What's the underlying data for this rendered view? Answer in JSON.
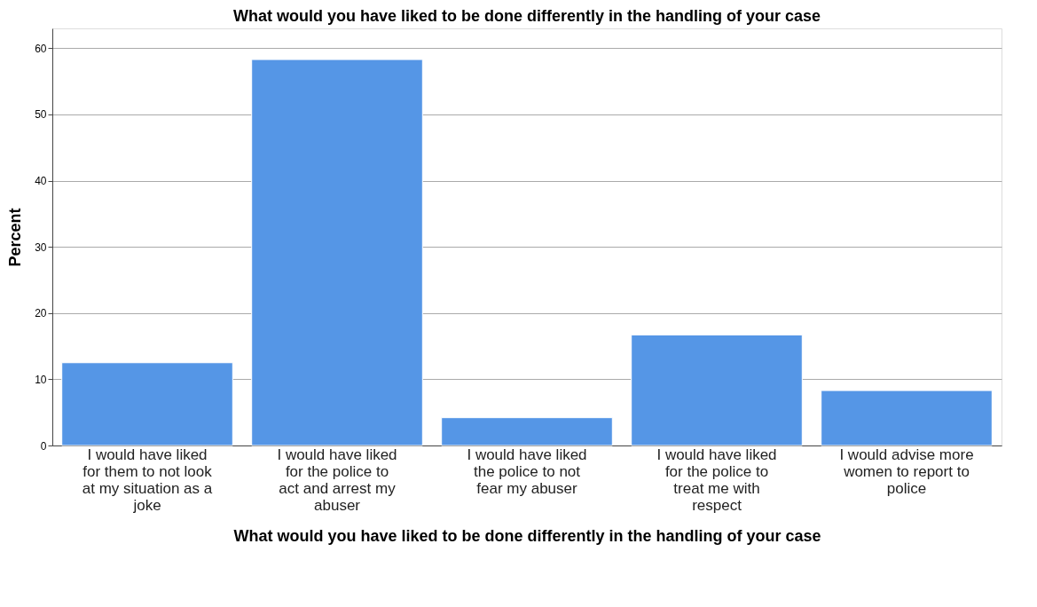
{
  "chart_data": {
    "type": "bar",
    "title": "What would you have liked to be done differently in the handling of your case",
    "xlabel": "What would you have liked to be done differently in the handling of your case",
    "ylabel": "Percent",
    "categories": [
      "I would have liked for them to not look at my situation as a joke",
      "I would have liked for the police to act and arrest my abuser",
      "I would have liked the police to not fear my abuser",
      "I would have liked for the police to treat me with respect",
      "I would advise more women to report to police"
    ],
    "values": [
      12.5,
      58.3,
      4.2,
      16.7,
      8.3
    ],
    "color": "#5596e6",
    "ylim": [
      0,
      63
    ],
    "yticks": [
      0,
      10,
      20,
      30,
      40,
      50,
      60
    ],
    "grid": "y"
  }
}
